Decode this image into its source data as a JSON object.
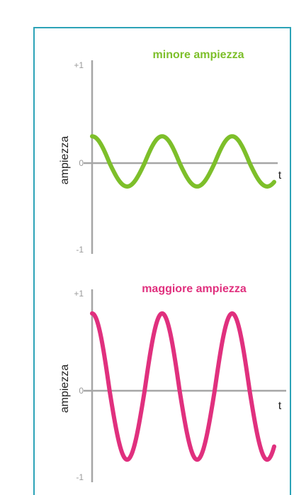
{
  "chart_data": [
    {
      "type": "line",
      "title": "minore ampiezza",
      "ylabel": "ampiezza",
      "xlabel": "t",
      "yticks": [
        "+1",
        "0",
        "-1"
      ],
      "ylim": [
        -1,
        1
      ],
      "amplitude": 0.27,
      "cycles": 2.6,
      "phase_deg": 90,
      "color": "#7dbf2a",
      "axis_color": "#a6a6a6"
    },
    {
      "type": "line",
      "title": "maggiore ampiezza",
      "ylabel": "ampiezza",
      "xlabel": "t",
      "yticks": [
        "+1",
        "0",
        "-1"
      ],
      "ylim": [
        -1,
        1
      ],
      "amplitude": 0.79,
      "cycles": 2.6,
      "phase_deg": 90,
      "color": "#e0307e",
      "axis_color": "#a6a6a6"
    }
  ]
}
